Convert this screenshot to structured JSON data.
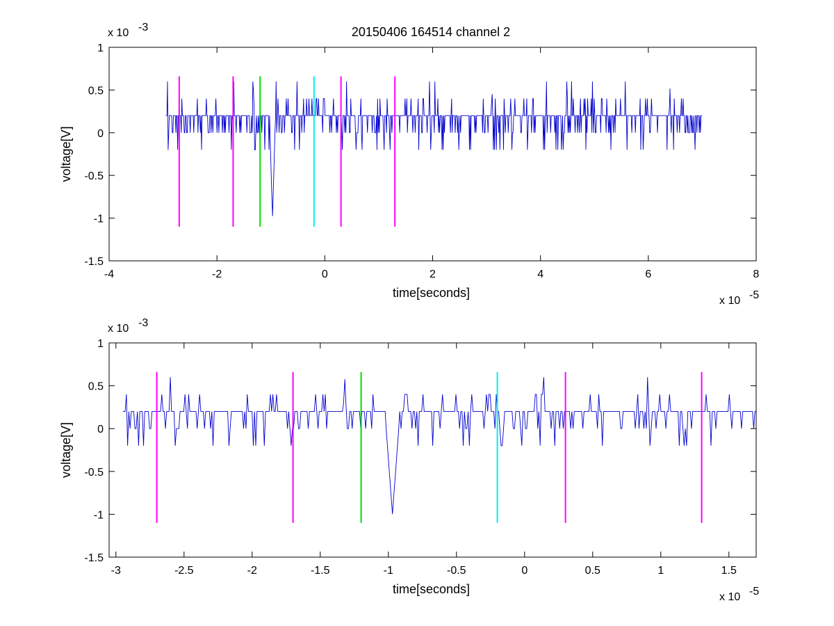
{
  "figure": {
    "title": "20150406 164514 channel 2"
  },
  "colors": {
    "trace": "#0000cc",
    "magenta": "#ff00ff",
    "green": "#00dd00",
    "cyan": "#00eeee",
    "axes": "#000000"
  },
  "chart_data": [
    {
      "type": "line",
      "title": "20150406 164514 channel 2",
      "xlabel": "time[seconds]",
      "ylabel": "voltage[V]",
      "x_multiplier_label": "x 10",
      "x_multiplier_exp": "-5",
      "y_multiplier_label": "x 10",
      "y_multiplier_exp": "-3",
      "xlim": [
        -4,
        8
      ],
      "ylim": [
        -1.5,
        1
      ],
      "x_ticks": [
        -4,
        -2,
        0,
        2,
        4,
        6,
        8
      ],
      "y_ticks": [
        -1.5,
        -1,
        -0.5,
        0,
        0.5,
        1
      ],
      "x_tick_labels": [
        "-4",
        "-2",
        "0",
        "2",
        "4",
        "6",
        "8"
      ],
      "y_tick_labels": [
        "-1.5",
        "-1",
        "-0.5",
        "0",
        "0.5",
        "1"
      ],
      "grid": false,
      "series": [
        {
          "color_key": "trace",
          "x_start": -2.95,
          "x_end": 7.0,
          "baseline_values": [
            0.2,
            0,
            0.2,
            0.4,
            0,
            0.2,
            -0.2,
            0.2,
            0,
            0.2,
            0.4,
            0,
            0.2,
            0.2,
            0,
            0.4,
            0.2,
            0,
            0.2,
            -0.2,
            0.2,
            0.2,
            0,
            0.4,
            0.2,
            0.2,
            0,
            0.2,
            0.2,
            -0.2,
            0.2,
            0,
            0.2,
            0.4,
            0.2,
            0,
            0.2,
            0.2,
            0,
            0.6,
            0.2,
            0,
            0.2,
            -0.2,
            0.2,
            0,
            0.2,
            0.2,
            0,
            0.4,
            0.2,
            0,
            0.2,
            0.2,
            -0.2,
            0.2,
            0,
            0.2,
            0.4,
            0,
            0.2,
            0.2,
            0,
            0.2,
            0.4,
            0.2,
            0,
            0.2,
            -0.2,
            0.2,
            0.2,
            0,
            0.4,
            0.2,
            0,
            0.2,
            0.2,
            0,
            0.2,
            0.6,
            0.2,
            0,
            0.2,
            -0.2,
            0.2,
            0,
            0.2,
            0.4,
            0.2,
            0,
            0.2,
            0.2,
            0,
            0.4,
            0.2,
            0,
            0.2,
            -0.2,
            0.2,
            0.2
          ],
          "events": [
            {
              "x": -0.97,
              "y": -1.0,
              "halfwidth": 0.05
            },
            {
              "x": -1.32,
              "y": 0.6,
              "halfwidth": 0.01
            },
            {
              "x": 3.1,
              "y": 0.6,
              "halfwidth": 0.01
            },
            {
              "x": 6.4,
              "y": 0.6,
              "halfwidth": 0.01
            }
          ]
        }
      ],
      "markers": [
        {
          "x": -2.7,
          "color_key": "magenta",
          "y_top": 0.66,
          "y_bottom": -1.1
        },
        {
          "x": -1.7,
          "color_key": "magenta",
          "y_top": 0.66,
          "y_bottom": -1.1
        },
        {
          "x": -1.2,
          "color_key": "green",
          "y_top": 0.66,
          "y_bottom": -1.1
        },
        {
          "x": -0.2,
          "color_key": "cyan",
          "y_top": 0.66,
          "y_bottom": -1.1
        },
        {
          "x": 0.3,
          "color_key": "magenta",
          "y_top": 0.66,
          "y_bottom": -1.1
        },
        {
          "x": 1.3,
          "color_key": "magenta",
          "y_top": 0.66,
          "y_bottom": -1.1
        }
      ]
    },
    {
      "type": "line",
      "xlabel": "time[seconds]",
      "ylabel": "voltage[V]",
      "x_multiplier_label": "x 10",
      "x_multiplier_exp": "-5",
      "y_multiplier_label": "x 10",
      "y_multiplier_exp": "-3",
      "xlim": [
        -3.05,
        1.7
      ],
      "ylim": [
        -1.5,
        1
      ],
      "x_ticks": [
        -3,
        -2.5,
        -2,
        -1.5,
        -1,
        -0.5,
        0,
        0.5,
        1,
        1.5
      ],
      "y_ticks": [
        -1.5,
        -1,
        -0.5,
        0,
        0.5,
        1
      ],
      "x_tick_labels": [
        "-3",
        "-2.5",
        "-2",
        "-1.5",
        "-1",
        "-0.5",
        "0",
        "0.5",
        "1",
        "1.5"
      ],
      "y_tick_labels": [
        "-1.5",
        "-1",
        "-0.5",
        "0",
        "0.5",
        "1"
      ],
      "grid": false,
      "series": [
        {
          "color_key": "trace",
          "x_start": -2.95,
          "x_end": 1.7,
          "baseline_values": [
            0.2,
            0.4,
            0.2,
            0,
            0.2,
            0,
            0.2,
            0.2,
            0,
            0.2,
            -0.2,
            0.2,
            0.4,
            0.2,
            0,
            0.2,
            0.2,
            0.4,
            0.2,
            0,
            0.2,
            0.2,
            0,
            0.2,
            0.2,
            0.4,
            0.2,
            0,
            -0.2,
            0.2,
            0.2,
            0,
            0.2,
            -0.2,
            0.2,
            0.4,
            0.2,
            0.2,
            0,
            0.2,
            0.2,
            -0.2,
            0.2,
            0.2,
            0.4,
            0.2,
            0,
            0.2,
            0.4,
            0.2,
            0.2,
            0,
            0.2,
            0.2,
            0,
            0.6,
            0.2,
            0.2,
            0,
            0.2,
            -0.2,
            0.2,
            0.2,
            0,
            0.2,
            0.4,
            0.2,
            0,
            0.2,
            0.2,
            0,
            0.2,
            -0.2,
            0.2,
            0.4,
            0.2,
            0,
            0.2,
            0.4,
            0.2,
            0.2,
            0,
            0.2,
            0.2,
            0,
            0.2,
            0.4,
            0.2,
            0,
            0.2,
            -0.2,
            0.2,
            0.2,
            0,
            0.2,
            0.4,
            0.2,
            0,
            0.2,
            0.2
          ],
          "events": [
            {
              "x": -0.97,
              "y": -1.0,
              "halfwidth": 0.05
            },
            {
              "x": -1.32,
              "y": 0.6,
              "halfwidth": 0.01
            }
          ]
        }
      ],
      "markers": [
        {
          "x": -2.7,
          "color_key": "magenta",
          "y_top": 0.66,
          "y_bottom": -1.1
        },
        {
          "x": -1.7,
          "color_key": "magenta",
          "y_top": 0.66,
          "y_bottom": -1.1
        },
        {
          "x": -1.2,
          "color_key": "green",
          "y_top": 0.66,
          "y_bottom": -1.1
        },
        {
          "x": -0.2,
          "color_key": "cyan",
          "y_top": 0.66,
          "y_bottom": -1.1
        },
        {
          "x": 0.3,
          "color_key": "magenta",
          "y_top": 0.66,
          "y_bottom": -1.1
        },
        {
          "x": 1.3,
          "color_key": "magenta",
          "y_top": 0.66,
          "y_bottom": -1.1
        }
      ]
    }
  ]
}
